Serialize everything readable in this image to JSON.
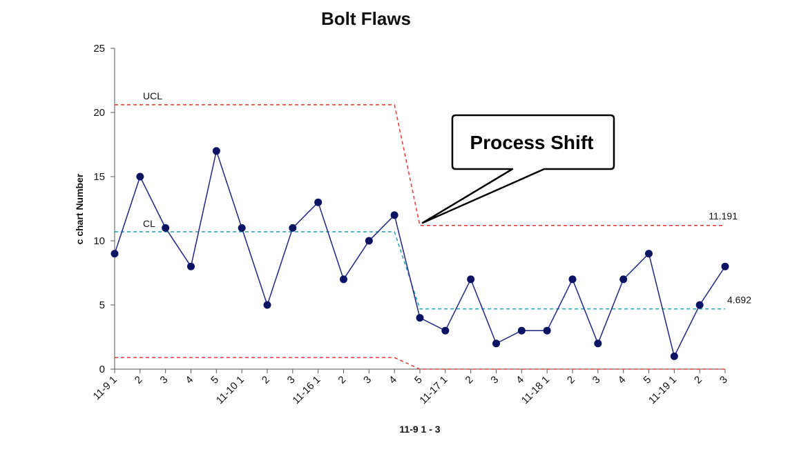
{
  "chart_data": {
    "type": "line",
    "title": "Bolt  Flaws",
    "xlabel": "11-9 1 - 3",
    "ylabel": "c chart Number",
    "ylim": [
      0,
      25
    ],
    "yticks": [
      0,
      5,
      10,
      15,
      20,
      25
    ],
    "categories": [
      "11-9 1",
      "2",
      "3",
      "4",
      "5",
      "11-10 1",
      "2",
      "3",
      "11-16 1",
      "2",
      "3",
      "4",
      "5",
      "11-17 1",
      "2",
      "3",
      "4",
      "11-18 1",
      "2",
      "3",
      "4",
      "5",
      "11-19 1",
      "2",
      "3"
    ],
    "series": [
      {
        "values": [
          9,
          15,
          11,
          8,
          17,
          11,
          5,
          11,
          13,
          7,
          10,
          12,
          4,
          3,
          7,
          2,
          3,
          3,
          7,
          2,
          7,
          9,
          1,
          5,
          8
        ],
        "color": "#2b2f86",
        "marker_color": "#0b1363"
      }
    ],
    "control_limits": {
      "phase_split_index": 12,
      "before": {
        "ucl": 20.6,
        "cl": 10.7,
        "lcl": 0.9
      },
      "after": {
        "ucl": 11.191,
        "cl": 4.692,
        "lcl": 0
      },
      "ucl_color": "#e8413c",
      "cl_color": "#2aa7b8"
    },
    "annotations": {
      "ucl_label": "UCL",
      "cl_label": "CL",
      "ucl_value_label": "11.191",
      "cl_value_label": "4.692",
      "callout": "Process Shift"
    },
    "grid": false,
    "legend": "none"
  }
}
